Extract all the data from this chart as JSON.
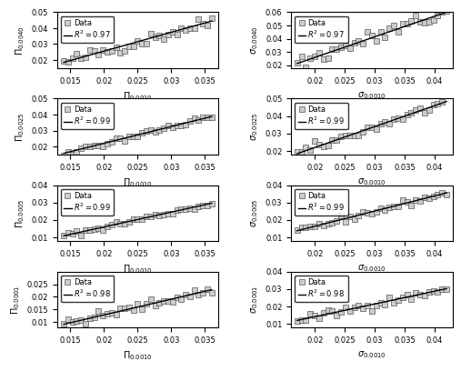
{
  "left_panels": [
    {
      "ylabel": "$\\Pi_{0.0040}$",
      "xlabel": "$\\Pi_{0.0010}$",
      "r2": 0.97,
      "xlim": [
        0.013,
        0.037
      ],
      "ylim": [
        0.015,
        0.05
      ],
      "yticks": [
        0.02,
        0.03,
        0.04,
        0.05
      ],
      "xticks": [
        0.015,
        0.02,
        0.025,
        0.03,
        0.035
      ],
      "slope": 1.18,
      "intercept": 0.002
    },
    {
      "ylabel": "$\\Pi_{0.0025}$",
      "xlabel": "$\\Pi_{0.0010}$",
      "r2": 0.99,
      "xlim": [
        0.013,
        0.037
      ],
      "ylim": [
        0.015,
        0.05
      ],
      "yticks": [
        0.02,
        0.03,
        0.04,
        0.05
      ],
      "xticks": [
        0.015,
        0.02,
        0.025,
        0.03,
        0.035
      ],
      "slope": 1.05,
      "intercept": 0.001
    },
    {
      "ylabel": "$\\Pi_{0.0005}$",
      "xlabel": "$\\Pi_{0.0010}$",
      "r2": 0.99,
      "xlim": [
        0.013,
        0.037
      ],
      "ylim": [
        0.008,
        0.04
      ],
      "yticks": [
        0.01,
        0.02,
        0.03,
        0.04
      ],
      "xticks": [
        0.015,
        0.02,
        0.025,
        0.03,
        0.035
      ],
      "slope": 0.85,
      "intercept": -0.001
    },
    {
      "ylabel": "$\\Pi_{0.0001}$",
      "xlabel": "$\\Pi_{0.0010}$",
      "r2": 0.98,
      "xlim": [
        0.013,
        0.037
      ],
      "ylim": [
        0.008,
        0.03
      ],
      "yticks": [
        0.01,
        0.015,
        0.02,
        0.025
      ],
      "xticks": [
        0.015,
        0.02,
        0.025,
        0.03,
        0.035
      ],
      "slope": 0.62,
      "intercept": 0.0005
    }
  ],
  "right_panels": [
    {
      "ylabel": "$\\sigma_{0.0040}$",
      "xlabel": "$\\sigma_{0.0010}$",
      "r2": 0.97,
      "xlim": [
        0.016,
        0.043
      ],
      "ylim": [
        0.018,
        0.06
      ],
      "yticks": [
        0.02,
        0.03,
        0.04,
        0.05,
        0.06
      ],
      "xticks": [
        0.02,
        0.025,
        0.03,
        0.035,
        0.04
      ],
      "slope": 1.55,
      "intercept": -0.005
    },
    {
      "ylabel": "$\\sigma_{0.0025}$",
      "xlabel": "$\\sigma_{0.0010}$",
      "r2": 0.99,
      "xlim": [
        0.016,
        0.043
      ],
      "ylim": [
        0.018,
        0.05
      ],
      "yticks": [
        0.02,
        0.03,
        0.04,
        0.05
      ],
      "xticks": [
        0.02,
        0.025,
        0.03,
        0.035,
        0.04
      ],
      "slope": 1.2,
      "intercept": -0.002
    },
    {
      "ylabel": "$\\sigma_{0.0005}$",
      "xlabel": "$\\sigma_{0.0010}$",
      "r2": 0.99,
      "xlim": [
        0.016,
        0.043
      ],
      "ylim": [
        0.008,
        0.04
      ],
      "yticks": [
        0.01,
        0.02,
        0.03,
        0.04
      ],
      "xticks": [
        0.02,
        0.025,
        0.03,
        0.035,
        0.04
      ],
      "slope": 0.87,
      "intercept": -0.001
    },
    {
      "ylabel": "$\\sigma_{0.0001}$",
      "xlabel": "$\\sigma_{0.0010}$",
      "r2": 0.98,
      "xlim": [
        0.016,
        0.043
      ],
      "ylim": [
        0.008,
        0.04
      ],
      "yticks": [
        0.01,
        0.02,
        0.03,
        0.04
      ],
      "xticks": [
        0.02,
        0.025,
        0.03,
        0.035,
        0.04
      ],
      "slope": 0.73,
      "intercept": -0.0005
    }
  ],
  "marker_color": "#999999",
  "line_color": "#000000",
  "bg_color": "#ffffff",
  "marker": "s",
  "markersize": 4,
  "linewidth": 1.0,
  "fontsize_label": 7,
  "fontsize_tick": 6,
  "fontsize_legend": 6
}
